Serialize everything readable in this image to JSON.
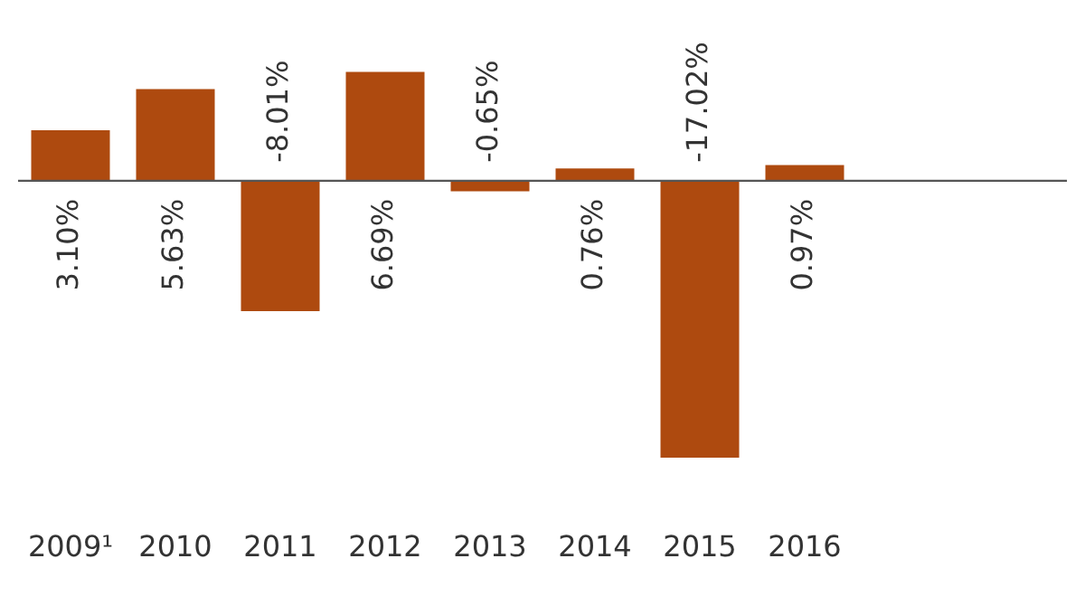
{
  "chart_data": {
    "type": "bar",
    "categories": [
      "2009¹",
      "2010",
      "2011",
      "2012",
      "2013",
      "2014",
      "2015",
      "2016",
      null,
      null
    ],
    "values": [
      3.1,
      5.63,
      -8.01,
      6.69,
      -0.65,
      0.76,
      -17.02,
      0.97,
      null,
      null
    ],
    "value_labels": [
      "3.10%",
      "5.63%",
      "-8.01%",
      "6.69%",
      "-0.65%",
      "0.76%",
      "-17.02%",
      "0.97%",
      null,
      null
    ],
    "color": "#ae4a0f",
    "grid": false,
    "legend": false,
    "tick_labels": "x"
  }
}
